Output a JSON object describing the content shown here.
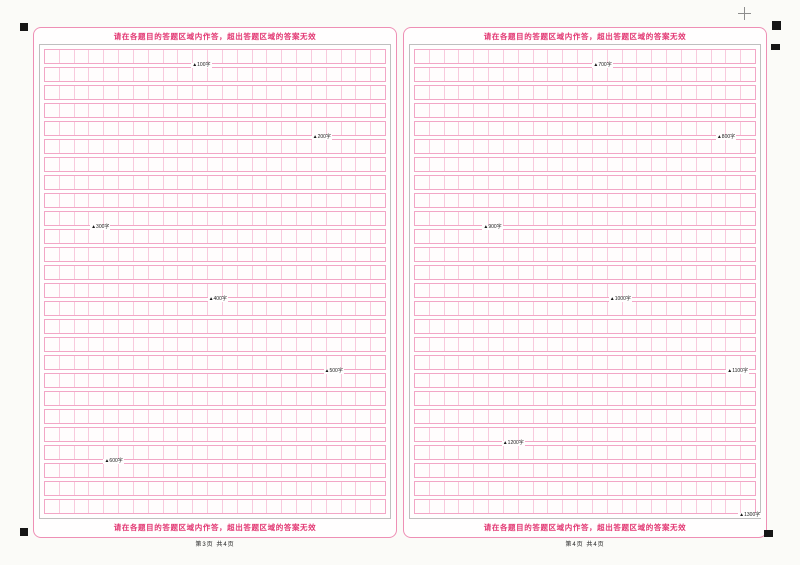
{
  "sheet": {
    "warning_text": "请在各题目的答题区域内作答，超出答题区域的答案无效",
    "grid": {
      "rows": 26,
      "cols": 23
    },
    "panels": [
      {
        "name": "page-3",
        "footer": "第3页  共4页",
        "markers": [
          {
            "row": 1,
            "col": 9.9,
            "label": "▲100字"
          },
          {
            "row": 5,
            "col": 18.0,
            "label": "▲200字"
          },
          {
            "row": 10,
            "col": 3.1,
            "label": "▲300字"
          },
          {
            "row": 14,
            "col": 11.0,
            "label": "▲400字"
          },
          {
            "row": 18,
            "col": 18.8,
            "label": "▲500字"
          },
          {
            "row": 23,
            "col": 4.0,
            "label": "▲600字"
          }
        ]
      },
      {
        "name": "page-4",
        "footer": "第4页  共4页",
        "markers": [
          {
            "row": 1,
            "col": 12.0,
            "label": "▲700字"
          },
          {
            "row": 5,
            "col": 20.3,
            "label": "▲800字"
          },
          {
            "row": 10,
            "col": 4.6,
            "label": "▲900字"
          },
          {
            "row": 14,
            "col": 13.1,
            "label": "▲1000字"
          },
          {
            "row": 18,
            "col": 21.0,
            "label": "▲1100字"
          },
          {
            "row": 22,
            "col": 5.9,
            "label": "▲1200字"
          },
          {
            "row": 26,
            "col": 21.8,
            "label": "▲1300字"
          }
        ]
      }
    ],
    "colors": {
      "warning_red": "#e23571",
      "border_pink": "#ee8fb5",
      "band_pink": "#f2a6c6",
      "cell_pink": "#f8cadd",
      "mark_black": "#161616"
    },
    "print_marks": {
      "crosshair_glyph": "+",
      "square_count": 5,
      "crosshair_count": 2
    }
  }
}
